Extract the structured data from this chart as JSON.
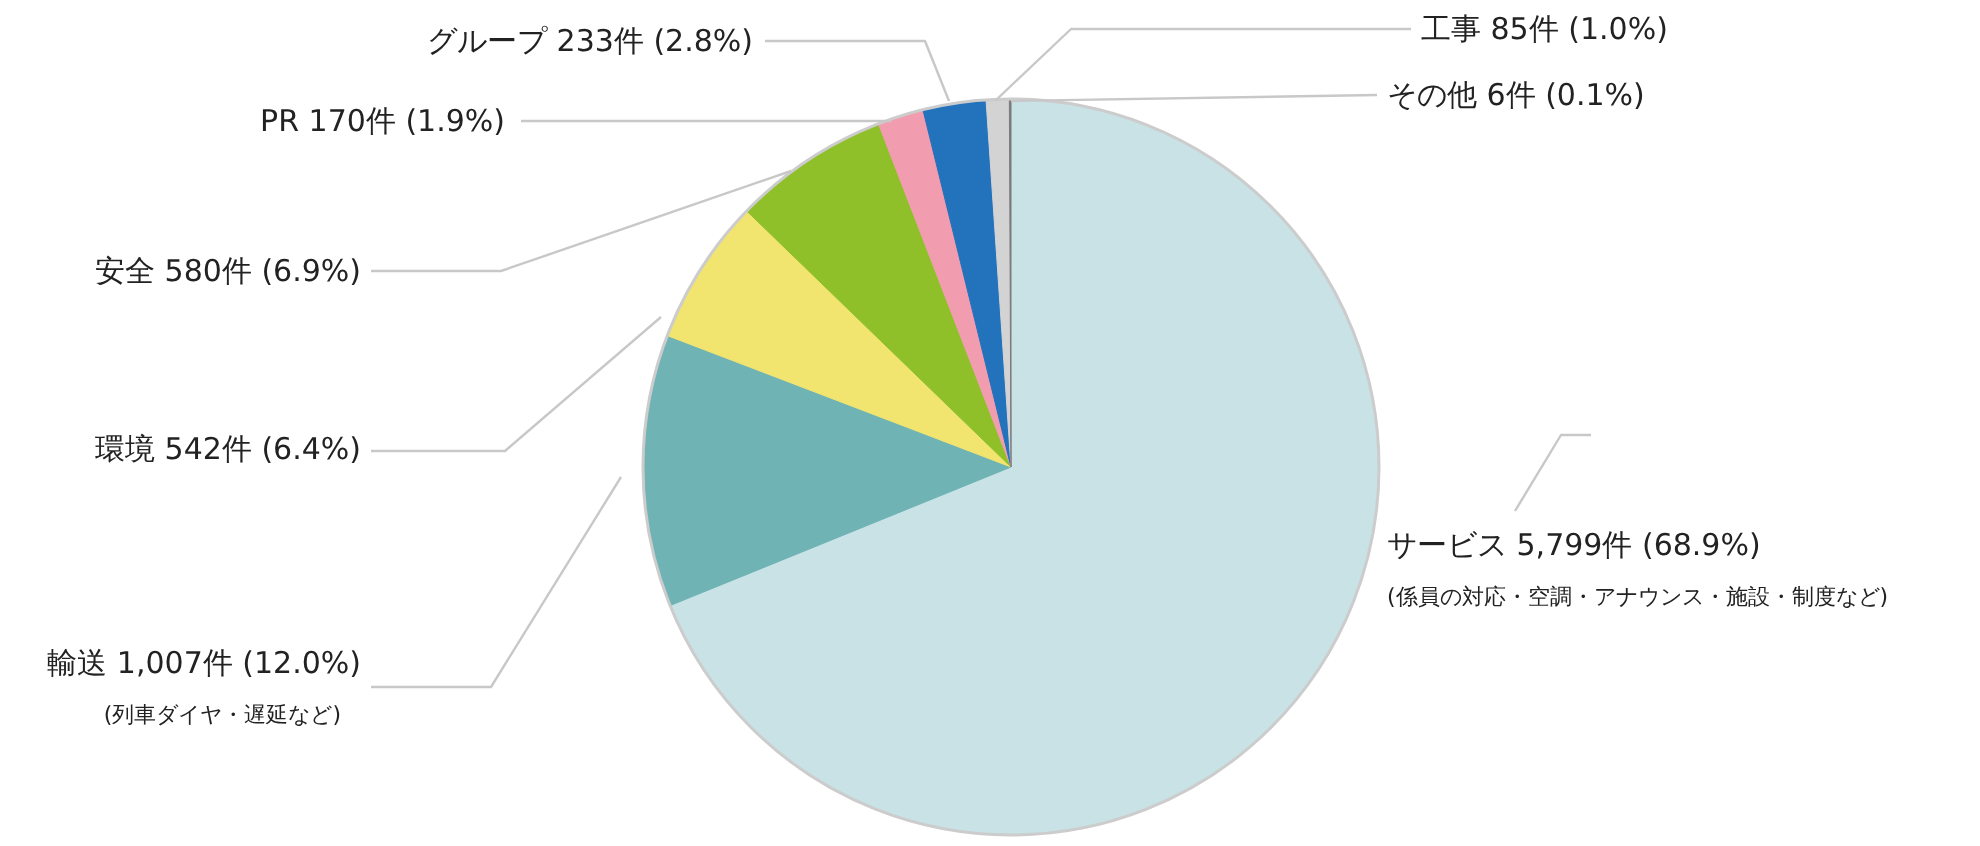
{
  "chart_data": {
    "type": "pie",
    "categories": [
      "サービス",
      "輸送",
      "環境",
      "安全",
      "PR",
      "グループ",
      "工事",
      "その他"
    ],
    "values": [
      5799,
      1007,
      542,
      580,
      170,
      233,
      85,
      6
    ],
    "value_labels": [
      "5,799件 (68.9%)",
      "1,007件 (12.0%)",
      "542件 (6.4%)",
      "580件 (6.9%)",
      "170件 (1.9%)",
      "233件 (2.8%)",
      "85件 (1.0%)",
      "6件 (0.1%)"
    ],
    "colors": [
      "#c8e2e6",
      "#6fb3b5",
      "#f1e46f",
      "#8fc02a",
      "#f29cb0",
      "#2372bc",
      "#d3d3d3",
      "#7b7b7b"
    ],
    "annotations": [
      {
        "text": "(係員の対応・空調・アナウンス・施設・制度など)",
        "x": "サービス"
      },
      {
        "text": "(列車ダイヤ・遅延など)",
        "x": "輸送"
      }
    ]
  }
}
